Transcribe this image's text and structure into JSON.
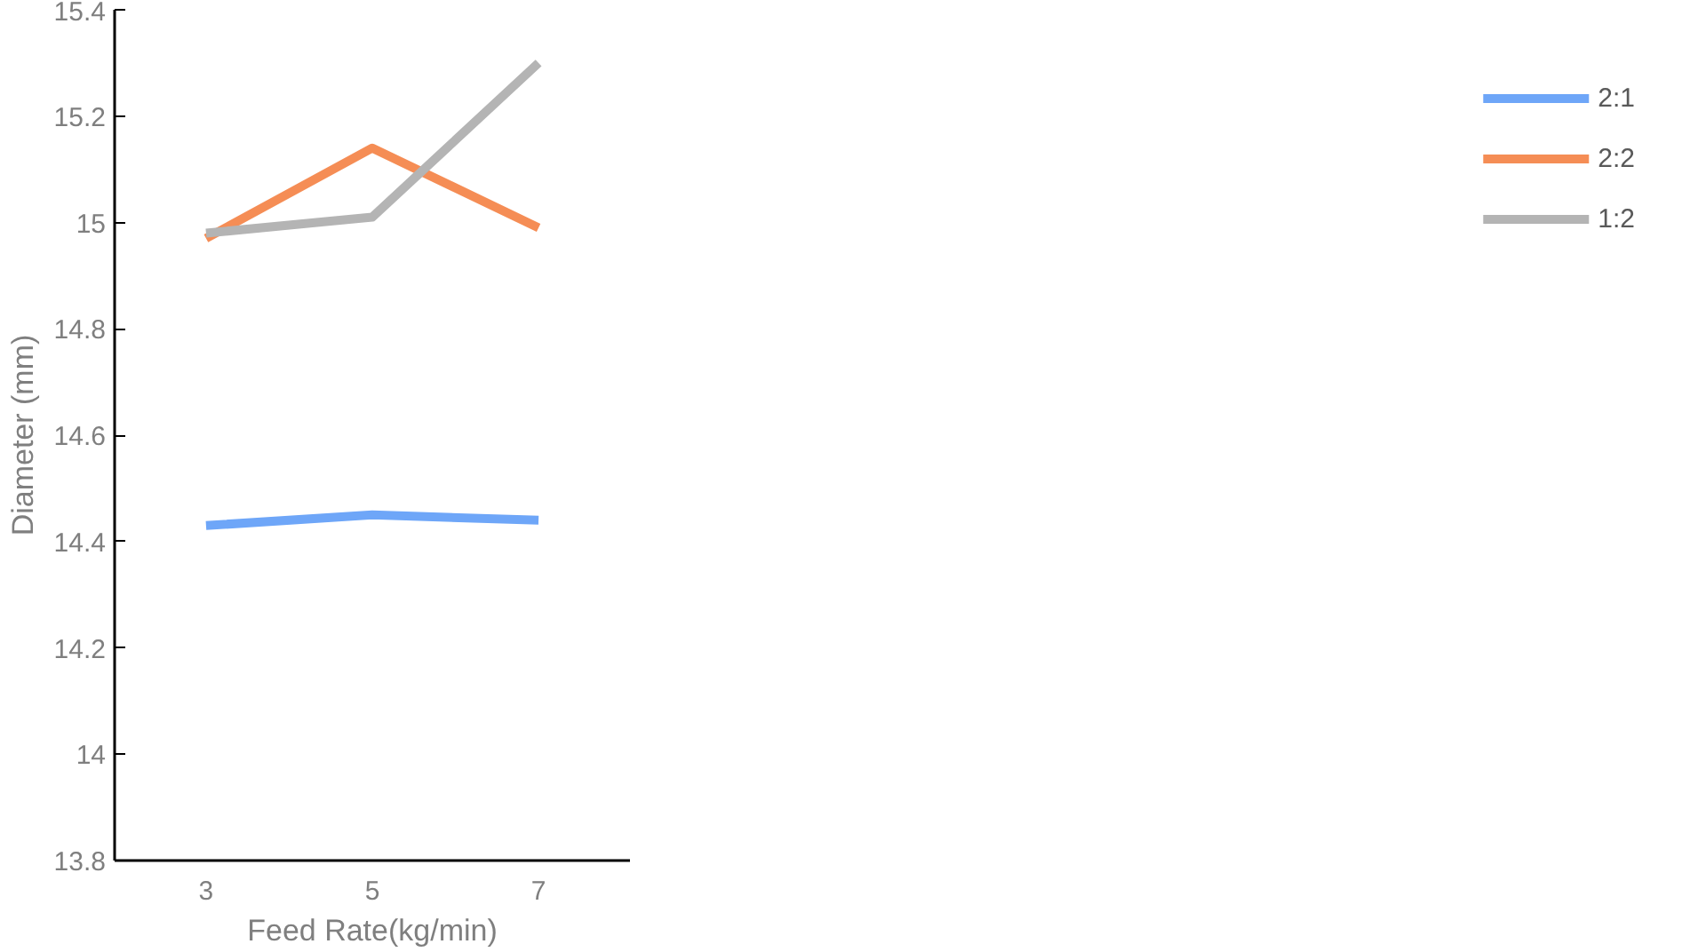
{
  "chart_data": {
    "type": "line",
    "xlabel": "Feed Rate(kg/min)",
    "ylabel": "Diameter (mm)",
    "categories": [
      "3",
      "5",
      "7"
    ],
    "series": [
      {
        "name": "2:1",
        "color": "#6ea6f8",
        "values": [
          14.43,
          14.45,
          14.44
        ]
      },
      {
        "name": "2:2",
        "color": "#f58d55",
        "values": [
          14.97,
          15.14,
          14.99
        ]
      },
      {
        "name": "1:2",
        "color": "#b4b4b4",
        "values": [
          14.98,
          15.01,
          15.3
        ]
      }
    ],
    "ylim": [
      13.8,
      15.4
    ],
    "yticks": [
      13.8,
      14,
      14.2,
      14.4,
      14.6,
      14.8,
      15,
      15.2,
      15.4
    ],
    "grid": false,
    "legend": "right",
    "marker": "none",
    "line_style": "solid"
  }
}
